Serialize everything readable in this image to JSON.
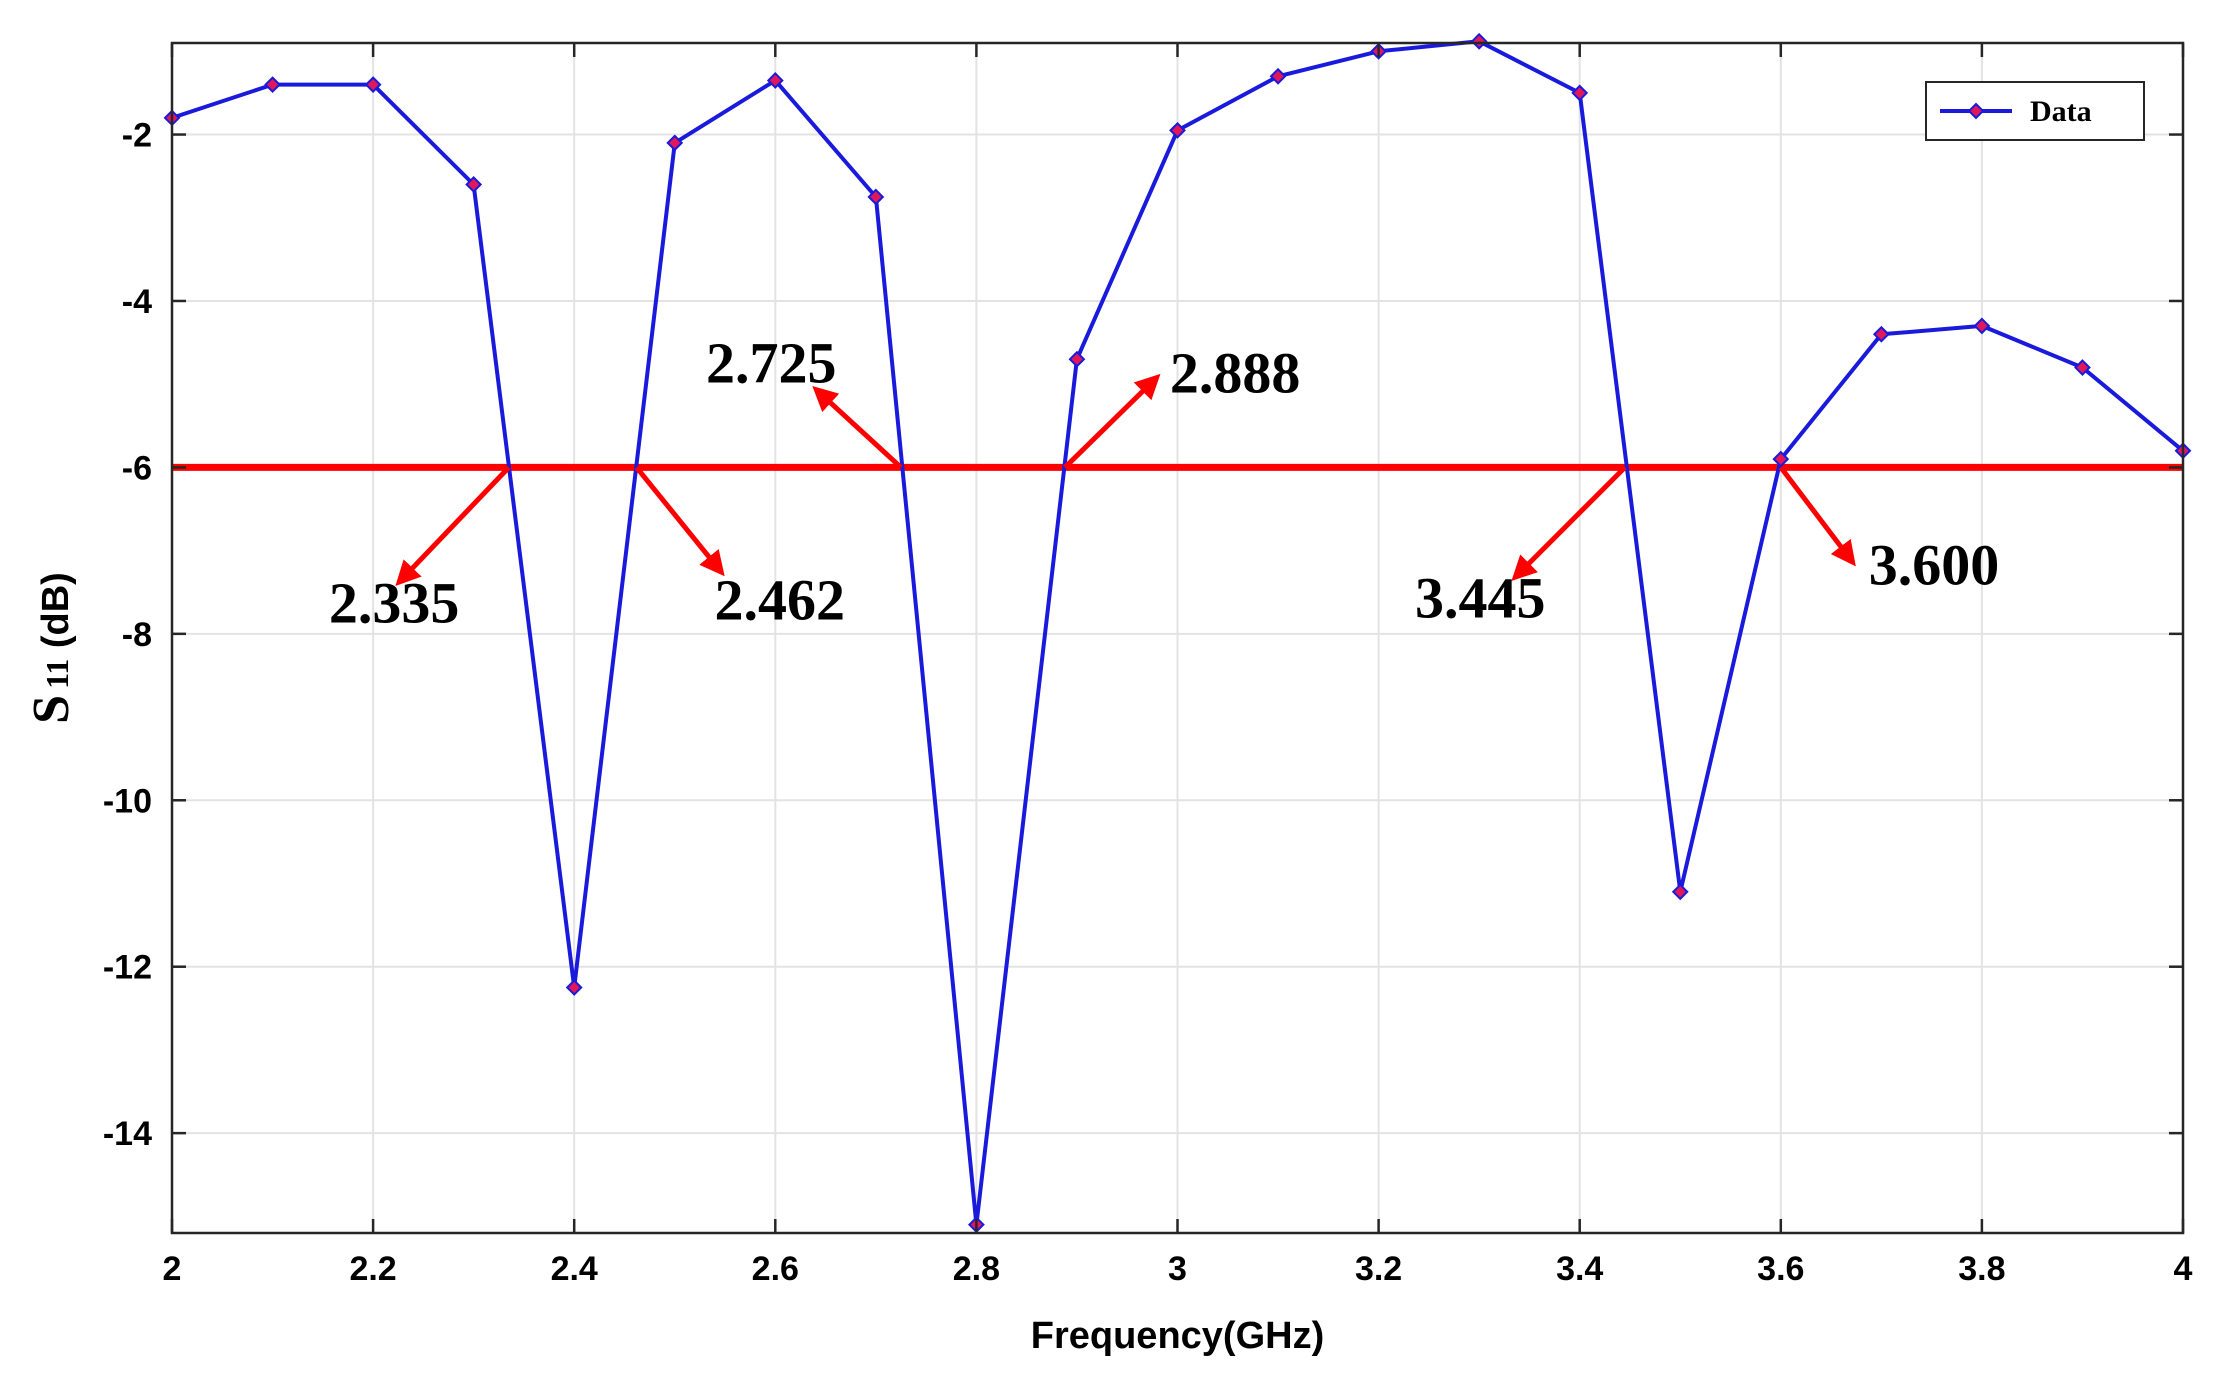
{
  "chart_data": {
    "type": "line",
    "xlabel": "Frequency(GHz)",
    "ylabel_main": "S",
    "ylabel_sub": "11",
    "ylabel_unit": " (dB)",
    "xlim": [
      2,
      4
    ],
    "ylim": [
      -15.2,
      -0.9
    ],
    "xticks": [
      2,
      2.2,
      2.4,
      2.6,
      2.8,
      3,
      3.2,
      3.4,
      3.6,
      3.8,
      4
    ],
    "xtick_labels": [
      "2",
      "2.2",
      "2.4",
      "2.6",
      "2.8",
      "3",
      "3.2",
      "3.4",
      "3.6",
      "3.8",
      "4"
    ],
    "yticks": [
      -2,
      -4,
      -6,
      -8,
      -10,
      -12,
      -14
    ],
    "ytick_labels": [
      "-2",
      "-4",
      "-6",
      "-8",
      "-10",
      "-12",
      "-14"
    ],
    "grid": true,
    "legend_position": "top-right",
    "series": [
      {
        "name": "Data",
        "color": "#1a1adc",
        "marker_color": "#e0185a",
        "x": [
          2,
          2.1,
          2.2,
          2.3,
          2.4,
          2.5,
          2.6,
          2.7,
          2.8,
          2.9,
          3,
          3.1,
          3.2,
          3.3,
          3.4,
          3.5,
          3.6,
          3.7,
          3.8,
          3.9,
          4
        ],
        "y": [
          -1.8,
          -1.4,
          -1.4,
          -2.6,
          -12.25,
          -2.1,
          -1.35,
          -2.75,
          -15.1,
          -4.7,
          -1.95,
          -1.3,
          -1.0,
          -0.88,
          -1.5,
          -11.1,
          -5.9,
          -4.4,
          -4.3,
          -4.8,
          -5.8
        ]
      }
    ],
    "threshold": {
      "y": -6,
      "color": "#ff0000"
    },
    "annotations": [
      {
        "text": "2.335",
        "x": 2.335
      },
      {
        "text": "2.462",
        "x": 2.462
      },
      {
        "text": "2.725",
        "x": 2.725
      },
      {
        "text": "2.888",
        "x": 2.888
      },
      {
        "text": "3.445",
        "x": 3.445
      },
      {
        "text": "3.600",
        "x": 3.6
      }
    ]
  }
}
